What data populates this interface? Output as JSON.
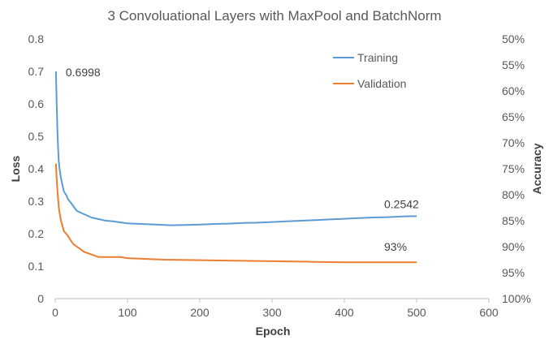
{
  "chart_data": {
    "type": "line",
    "title": "3 Convoluational Layers with MaxPool and BatchNorm",
    "xlabel": "Epoch",
    "ylabel": "Loss",
    "y2label": "Accuracy",
    "xlim": [
      0,
      600
    ],
    "ylim": [
      0,
      0.8
    ],
    "y2lim": [
      100,
      50
    ],
    "x_ticks": [
      0,
      100,
      200,
      300,
      400,
      500,
      600
    ],
    "y_ticks": [
      0,
      0.1,
      0.2,
      0.3,
      0.4,
      0.5,
      0.6,
      0.7,
      0.8
    ],
    "y2_ticks": [
      "100%",
      "95%",
      "90%",
      "85%",
      "80%",
      "75%",
      "70%",
      "65%",
      "60%",
      "55%",
      "50%"
    ],
    "legend_position": "top-right",
    "grid": false,
    "series": [
      {
        "name": "Training",
        "axis": "left",
        "color": "#5b9bd5",
        "x": [
          1,
          2,
          3,
          4,
          5,
          6,
          8,
          10,
          12,
          15,
          18,
          20,
          25,
          30,
          35,
          40,
          50,
          60,
          70,
          80,
          90,
          100,
          120,
          140,
          160,
          180,
          200,
          220,
          240,
          260,
          280,
          300,
          320,
          340,
          360,
          380,
          400,
          420,
          440,
          460,
          480,
          500
        ],
        "values": [
          0.6998,
          0.6,
          0.52,
          0.46,
          0.42,
          0.4,
          0.37,
          0.35,
          0.33,
          0.32,
          0.305,
          0.3,
          0.285,
          0.27,
          0.265,
          0.26,
          0.25,
          0.245,
          0.24,
          0.238,
          0.235,
          0.232,
          0.23,
          0.228,
          0.226,
          0.227,
          0.228,
          0.23,
          0.231,
          0.233,
          0.234,
          0.236,
          0.238,
          0.24,
          0.242,
          0.244,
          0.246,
          0.248,
          0.25,
          0.251,
          0.253,
          0.2542
        ]
      },
      {
        "name": "Validation",
        "axis": "right",
        "color": "#ed7d31",
        "x": [
          1,
          2,
          3,
          4,
          5,
          6,
          8,
          10,
          12,
          15,
          18,
          20,
          25,
          30,
          35,
          40,
          50,
          60,
          70,
          80,
          90,
          100,
          150,
          200,
          250,
          300,
          350,
          400,
          450,
          500
        ],
        "values": [
          74,
          77,
          79,
          81,
          82.5,
          83.5,
          85,
          86,
          87,
          87.5,
          88,
          88.5,
          89.5,
          90,
          90.5,
          91,
          91.5,
          92,
          92,
          92,
          92,
          92.2,
          92.5,
          92.6,
          92.7,
          92.8,
          92.9,
          93,
          93,
          93
        ]
      }
    ],
    "annotations": [
      {
        "text": "0.6998",
        "x": 1,
        "y": 0.6998,
        "axis": "left"
      },
      {
        "text": "0.2542",
        "x": 500,
        "y": 0.2542,
        "axis": "left"
      },
      {
        "text": "93%",
        "x": 500,
        "y": 93,
        "axis": "right"
      }
    ]
  }
}
